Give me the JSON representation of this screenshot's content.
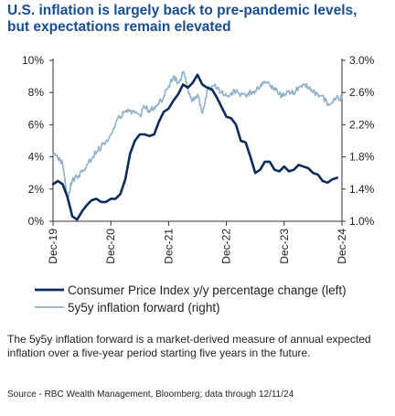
{
  "title": {
    "line1": "U.S. inflation is largely back to pre-pandemic levels,",
    "line2": "but expectations remain elevated"
  },
  "note": "The 5y5y inflation forward is a market-derived measure of annual expected inflation over a five-year period starting five years in the future.",
  "source": "Source - RBC Wealth Management, Bloomberg; data through 12/11/24",
  "colors": {
    "title": "#1a4d8c",
    "cpi": "#0f2a5c",
    "forward": "#8fb0c9",
    "axis": "#333333"
  },
  "chart_data": {
    "type": "line",
    "left_axis": {
      "min": 0,
      "max": 10,
      "ticks": [
        "0%",
        "2%",
        "4%",
        "6%",
        "8%",
        "10%"
      ]
    },
    "right_axis": {
      "min": 1.0,
      "max": 3.0,
      "ticks": [
        "1.0%",
        "1.4%",
        "1.8%",
        "2.2%",
        "2.6%",
        "3.0%"
      ]
    },
    "x_range": [
      "2019-12",
      "2024-12"
    ],
    "x_ticks": [
      "Dec-19",
      "Dec-20",
      "Dec-21",
      "Dec-22",
      "Dec-23",
      "Dec-24"
    ],
    "grid": false,
    "legend_position": "bottom",
    "series": [
      {
        "name": "Consumer Price Index y/y percentage change (left)",
        "axis": "left",
        "x": [
          "2019-12",
          "2020-01",
          "2020-02",
          "2020-03",
          "2020-04",
          "2020-05",
          "2020-06",
          "2020-07",
          "2020-08",
          "2020-09",
          "2020-10",
          "2020-11",
          "2020-12",
          "2021-01",
          "2021-02",
          "2021-03",
          "2021-04",
          "2021-05",
          "2021-06",
          "2021-07",
          "2021-08",
          "2021-09",
          "2021-10",
          "2021-11",
          "2021-12",
          "2022-01",
          "2022-02",
          "2022-03",
          "2022-04",
          "2022-05",
          "2022-06",
          "2022-07",
          "2022-08",
          "2022-09",
          "2022-10",
          "2022-11",
          "2022-12",
          "2023-01",
          "2023-02",
          "2023-03",
          "2023-04",
          "2023-05",
          "2023-06",
          "2023-07",
          "2023-08",
          "2023-09",
          "2023-10",
          "2023-11",
          "2023-12",
          "2024-01",
          "2024-02",
          "2024-03",
          "2024-04",
          "2024-05",
          "2024-06",
          "2024-07",
          "2024-08",
          "2024-09",
          "2024-10",
          "2024-11"
        ],
        "values": [
          2.3,
          2.5,
          2.3,
          1.5,
          0.3,
          0.1,
          0.6,
          1.0,
          1.3,
          1.4,
          1.2,
          1.2,
          1.4,
          1.4,
          1.7,
          2.6,
          4.2,
          5.0,
          5.4,
          5.4,
          5.3,
          5.4,
          6.2,
          6.8,
          7.0,
          7.5,
          7.9,
          8.5,
          8.3,
          8.6,
          9.1,
          8.5,
          8.3,
          8.2,
          7.7,
          7.1,
          6.5,
          6.4,
          6.0,
          5.0,
          4.9,
          4.0,
          3.0,
          3.2,
          3.7,
          3.7,
          3.2,
          3.1,
          3.4,
          3.1,
          3.2,
          3.5,
          3.4,
          3.3,
          3.0,
          2.9,
          2.5,
          2.4,
          2.6,
          2.7
        ]
      },
      {
        "name": "5y5y inflation forward (right)",
        "axis": "right",
        "x": [
          "2019-12",
          "2020-01",
          "2020-02",
          "2020-03",
          "2020-04",
          "2020-05",
          "2020-06",
          "2020-07",
          "2020-08",
          "2020-09",
          "2020-10",
          "2020-11",
          "2020-12",
          "2021-01",
          "2021-02",
          "2021-03",
          "2021-04",
          "2021-05",
          "2021-06",
          "2021-07",
          "2021-08",
          "2021-09",
          "2021-10",
          "2021-11",
          "2021-12",
          "2022-01",
          "2022-02",
          "2022-03",
          "2022-04",
          "2022-05",
          "2022-06",
          "2022-07",
          "2022-08",
          "2022-09",
          "2022-10",
          "2022-11",
          "2022-12",
          "2023-01",
          "2023-02",
          "2023-03",
          "2023-04",
          "2023-05",
          "2023-06",
          "2023-07",
          "2023-08",
          "2023-09",
          "2023-10",
          "2023-11",
          "2023-12",
          "2024-01",
          "2024-02",
          "2024-03",
          "2024-04",
          "2024-05",
          "2024-06",
          "2024-07",
          "2024-08",
          "2024-09",
          "2024-10",
          "2024-11",
          "2024-12"
        ],
        "values": [
          1.82,
          1.78,
          1.72,
          1.26,
          1.52,
          1.55,
          1.62,
          1.7,
          1.78,
          1.86,
          1.92,
          2.0,
          2.08,
          2.22,
          2.3,
          2.36,
          2.38,
          2.35,
          2.32,
          2.42,
          2.38,
          2.42,
          2.46,
          2.55,
          2.68,
          2.8,
          2.72,
          2.86,
          2.64,
          2.5,
          2.58,
          2.34,
          2.62,
          2.68,
          2.66,
          2.6,
          2.56,
          2.6,
          2.62,
          2.58,
          2.56,
          2.6,
          2.62,
          2.66,
          2.72,
          2.7,
          2.66,
          2.58,
          2.56,
          2.62,
          2.6,
          2.66,
          2.7,
          2.66,
          2.6,
          2.58,
          2.56,
          2.44,
          2.48,
          2.56,
          2.52
        ]
      }
    ]
  }
}
